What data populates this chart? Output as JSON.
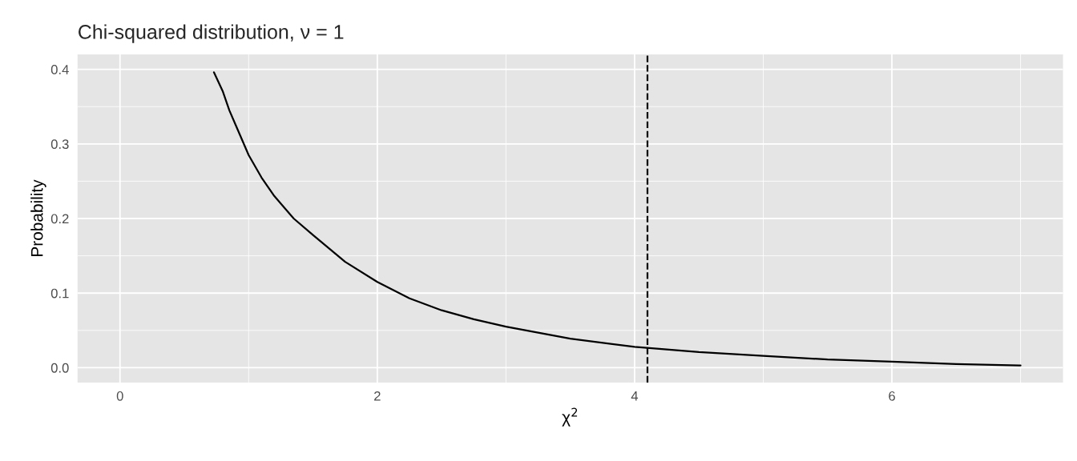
{
  "chart_data": {
    "type": "line",
    "title": "Chi-squared distribution, ν = 1",
    "xlabel": "χ$^{2}$",
    "ylabel": "Probability",
    "series": [
      {
        "color": "#000000",
        "x": [
          0.73,
          0.8,
          0.85,
          0.9,
          1.0,
          1.1,
          1.2,
          1.35,
          1.5,
          1.75,
          2.0,
          2.25,
          2.5,
          2.75,
          3.0,
          3.5,
          4.0,
          4.5,
          5.0,
          5.5,
          6.0,
          6.5,
          7.0
        ],
        "values": [
          0.396,
          0.37,
          0.345,
          0.325,
          0.285,
          0.255,
          0.23,
          0.2,
          0.178,
          0.142,
          0.115,
          0.093,
          0.077,
          0.065,
          0.055,
          0.039,
          0.028,
          0.021,
          0.016,
          0.011,
          0.008,
          0.005,
          0.003
        ]
      }
    ],
    "ref_lines": [
      {
        "axis": "x",
        "value": 4.1,
        "color": "#000000",
        "line_style": "dashed"
      }
    ],
    "xlim": [
      -0.33,
      7.33
    ],
    "ylim": [
      -0.02,
      0.42
    ],
    "xticks": [
      0,
      2,
      4,
      6
    ],
    "yticks": [
      {
        "value": 0,
        "label": "0.0"
      },
      {
        "value": 0.1,
        "label": "0.1"
      },
      {
        "value": 0.2,
        "label": "0.2"
      },
      {
        "value": 0.3,
        "label": "0.3"
      },
      {
        "value": 0.4,
        "label": "0.4"
      }
    ],
    "grid": true,
    "legend": false,
    "line_style": "solid",
    "marker": "none"
  }
}
